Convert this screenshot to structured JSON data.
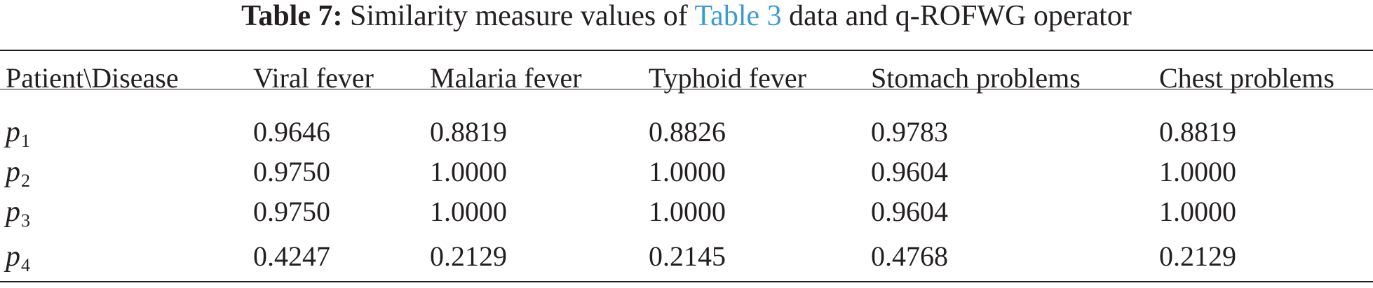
{
  "caption": {
    "label": "Table 7:",
    "text_before": "Similarity measure values of",
    "link_text": "Table 3",
    "text_after": "data and q-ROFWG operator"
  },
  "table": {
    "headers": [
      "Patient\\Disease",
      "Viral fever",
      "Malaria fever",
      "Typhoid fever",
      "Stomach problems",
      "Chest problems"
    ],
    "rows": [
      {
        "patient": "p",
        "sub": "1",
        "values": [
          "0.9646",
          "0.8819",
          "0.8826",
          "0.9783",
          "0.8819"
        ]
      },
      {
        "patient": "p",
        "sub": "2",
        "values": [
          "0.9750",
          "1.0000",
          "1.0000",
          "0.9604",
          "1.0000"
        ]
      },
      {
        "patient": "p",
        "sub": "3",
        "values": [
          "0.9750",
          "1.0000",
          "1.0000",
          "0.9604",
          "1.0000"
        ]
      },
      {
        "patient": "p",
        "sub": "4",
        "values": [
          "0.4247",
          "0.2129",
          "0.2145",
          "0.4768",
          "0.2129"
        ]
      }
    ]
  },
  "colors": {
    "text": "#231f20",
    "link": "#3b9bd1"
  }
}
